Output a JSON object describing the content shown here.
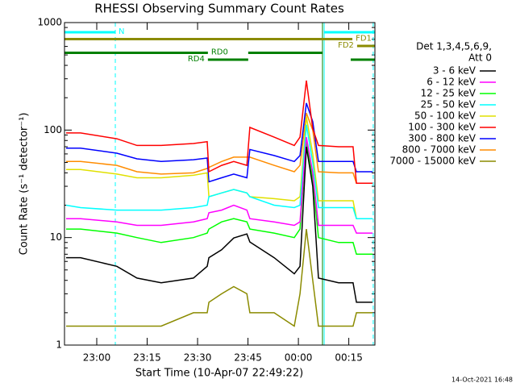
{
  "chart_data": {
    "type": "line",
    "title": "RHESSI Observing Summary Count Rates",
    "x_label": "Start Time (10-Apr-07 22:49:22)",
    "y_label": "Count Rate (s⁻¹ detector⁻¹)",
    "legend_header": [
      "Det 1,3,4,5,6,9,",
      "Att 0"
    ],
    "footer": "14-Oct-2021 16:48",
    "log_y": true,
    "xlim": [
      1.03,
      93.4
    ],
    "ylim": [
      1,
      1000
    ],
    "yticks": [
      1,
      10,
      100,
      1000
    ],
    "xticks": [
      {
        "value": 10.63,
        "label": "23:00"
      },
      {
        "value": 25.63,
        "label": "23:15"
      },
      {
        "value": 40.63,
        "label": "23:30"
      },
      {
        "value": 55.63,
        "label": "23:45"
      },
      {
        "value": 70.63,
        "label": "00:00"
      },
      {
        "value": 85.63,
        "label": "00:15"
      }
    ],
    "x": [
      1.5,
      5.8,
      16.6,
      22.6,
      29.8,
      39.4,
      43.5,
      44.0,
      47.8,
      51.4,
      55.3,
      56.2,
      63.4,
      69.4,
      71.1,
      73.0,
      74.9,
      76.6,
      82.6,
      86.9,
      87.9,
      92.7
    ],
    "series": [
      {
        "name": "3 - 6 keV",
        "color": "#000000",
        "values": [
          6.5,
          6.5,
          5.4,
          4.2,
          3.8,
          4.2,
          5.4,
          6.5,
          7.7,
          9.9,
          10.8,
          9.1,
          6.5,
          4.6,
          5.4,
          70,
          30,
          4.2,
          3.8,
          3.8,
          2.5,
          2.5
        ]
      },
      {
        "name": "6 - 12 keV",
        "color": "#ff00ff",
        "values": [
          15,
          15,
          14,
          13,
          13,
          14,
          15,
          17,
          18,
          20,
          18,
          15,
          14,
          13,
          14,
          86,
          40,
          13,
          13,
          13,
          11,
          11
        ]
      },
      {
        "name": "12 - 25 keV",
        "color": "#00ff00",
        "values": [
          12,
          12,
          11,
          10,
          9,
          10,
          11,
          12,
          14,
          15,
          14,
          12,
          11,
          10,
          12,
          79,
          35,
          10,
          9,
          9,
          7,
          7
        ]
      },
      {
        "name": "25 - 50 keV",
        "color": "#00ffff",
        "values": [
          20,
          19,
          18,
          18,
          18,
          19,
          20,
          24,
          26,
          28,
          26,
          24,
          20,
          19,
          20,
          112,
          50,
          19,
          19,
          19,
          15,
          15
        ]
      },
      {
        "name": "50 - 100 keV",
        "color": "#e0e000",
        "values": [
          43,
          43,
          39,
          36,
          36,
          38,
          40,
          24,
          26,
          28,
          26,
          24,
          23,
          22,
          24,
          133,
          60,
          22,
          22,
          22,
          15,
          15
        ]
      },
      {
        "name": "100 - 300 keV",
        "color": "#ff0000",
        "values": [
          94,
          94,
          83,
          72,
          72,
          75,
          78,
          41,
          47,
          51,
          47,
          106,
          86,
          72,
          86,
          289,
          103,
          72,
          70,
          70,
          32,
          32
        ]
      },
      {
        "name": "300 - 800 keV",
        "color": "#0000ff",
        "values": [
          68,
          68,
          61,
          54,
          51,
          53,
          55,
          33,
          36,
          39,
          36,
          66,
          58,
          51,
          58,
          178,
          120,
          51,
          51,
          51,
          41,
          41
        ]
      },
      {
        "name": "800 - 7000 keV",
        "color": "#ff8c00",
        "values": [
          51,
          51,
          47,
          41,
          39,
          40,
          44,
          45,
          51,
          56,
          56,
          56,
          47,
          41,
          47,
          144,
          100,
          41,
          40,
          40,
          32,
          32
        ]
      },
      {
        "name": "7000 - 15000 keV",
        "color": "#8b8b00",
        "values": [
          1.5,
          1.5,
          1.5,
          1.5,
          1.5,
          2,
          2,
          2.5,
          3,
          3.5,
          3,
          2,
          2,
          1.5,
          3,
          12,
          4,
          1.5,
          1.5,
          1.5,
          2,
          2
        ]
      }
    ],
    "flags": [
      {
        "label": "N",
        "color": "#00ffff",
        "label_side": "after",
        "segments": [
          [
            1.03,
            16.15
          ],
          [
            78.3,
            93.4
          ]
        ]
      },
      {
        "label": "FD1",
        "color": "#8b8b00",
        "label_side": "after",
        "segments": [
          [
            1.03,
            86.7
          ]
        ]
      },
      {
        "label": "FD2",
        "color": "#8b8b00",
        "label_side": "before",
        "segments": [
          [
            88.1,
            93.4
          ]
        ]
      },
      {
        "label": "RD0",
        "color": "#008000",
        "label_side": "after",
        "segments": [
          [
            1.03,
            43.7
          ],
          [
            55.7,
            77.8
          ]
        ]
      },
      {
        "label": "RD4",
        "color": "#008000",
        "label_side": "before",
        "segments": [
          [
            43.7,
            55.7
          ],
          [
            86.2,
            93.4
          ]
        ]
      }
    ],
    "vlines": [
      {
        "x": 1.03,
        "color": "#00ffff",
        "style": "solid"
      },
      {
        "x": 16.15,
        "color": "#00ffff",
        "style": "dashed"
      },
      {
        "x": 77.8,
        "color": "#008000",
        "style": "solid"
      },
      {
        "x": 78.3,
        "color": "#00ffff",
        "style": "solid"
      },
      {
        "x": 92.9,
        "color": "#00ffff",
        "style": "dashed"
      }
    ]
  }
}
